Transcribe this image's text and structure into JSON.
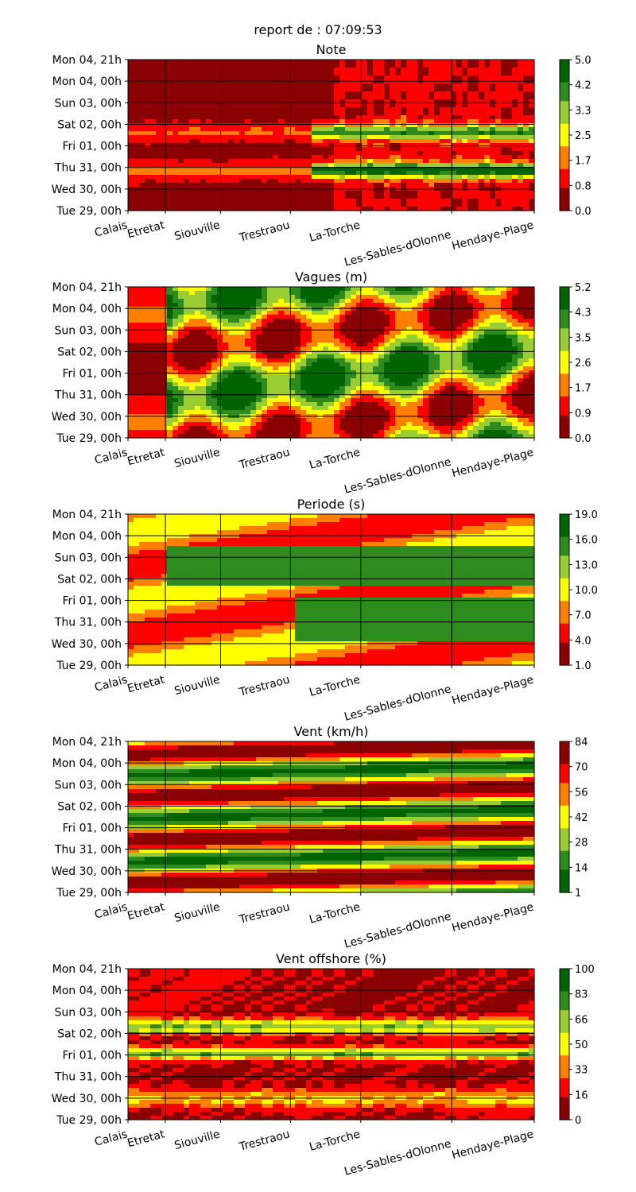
{
  "report_title": "report de : 07:09:53",
  "colors": {
    "dark_red": "#8b0000",
    "red": "#ff0000",
    "yellow": "#ffff00",
    "green": "#2e8b1e",
    "dark_green": "#006400"
  },
  "chart_data": [
    {
      "type": "heatmap",
      "title": "Note",
      "y_ticks": [
        "Mon 04, 21h",
        "Mon 04, 00h",
        "Sun 03, 00h",
        "Sat 02, 00h",
        "Fri 01, 00h",
        "Thu 31, 00h",
        "Wed 30, 00h",
        "Tue 29, 00h"
      ],
      "x_ticks": [
        "Calais",
        "Etretat",
        "Siouville",
        "Trestraou",
        "La-Torche",
        "Les-Sables-dOlonne",
        "Hendaye-Plage"
      ],
      "colorbar": {
        "min": 0.0,
        "max": 5.0,
        "ticks": [
          "5.0",
          "4.2",
          "3.3",
          "2.5",
          "1.7",
          "0.8",
          "0.0"
        ]
      }
    },
    {
      "type": "heatmap",
      "title": "Vagues (m)",
      "y_ticks": [
        "Mon 04, 21h",
        "Mon 04, 00h",
        "Sun 03, 00h",
        "Sat 02, 00h",
        "Fri 01, 00h",
        "Thu 31, 00h",
        "Wed 30, 00h",
        "Tue 29, 00h"
      ],
      "x_ticks": [
        "Calais",
        "Etretat",
        "Siouville",
        "Trestraou",
        "La-Torche",
        "Les-Sables-dOlonne",
        "Hendaye-Plage"
      ],
      "colorbar": {
        "min": 0.0,
        "max": 5.2,
        "ticks": [
          "5.2",
          "4.3",
          "3.5",
          "2.6",
          "1.7",
          "0.9",
          "0.0"
        ]
      }
    },
    {
      "type": "heatmap",
      "title": "Periode (s)",
      "y_ticks": [
        "Mon 04, 21h",
        "Mon 04, 00h",
        "Sun 03, 00h",
        "Sat 02, 00h",
        "Fri 01, 00h",
        "Thu 31, 00h",
        "Wed 30, 00h",
        "Tue 29, 00h"
      ],
      "x_ticks": [
        "Calais",
        "Etretat",
        "Siouville",
        "Trestraou",
        "La-Torche",
        "Les-Sables-dOlonne",
        "Hendaye-Plage"
      ],
      "colorbar": {
        "min": 1.0,
        "max": 19.0,
        "ticks": [
          "19.0",
          "16.0",
          "13.0",
          "10.0",
          "7.0",
          "4.0",
          "1.0"
        ]
      }
    },
    {
      "type": "heatmap",
      "title": "Vent (km/h)",
      "y_ticks": [
        "Mon 04, 21h",
        "Mon 04, 00h",
        "Sun 03, 00h",
        "Sat 02, 00h",
        "Fri 01, 00h",
        "Thu 31, 00h",
        "Wed 30, 00h",
        "Tue 29, 00h"
      ],
      "x_ticks": [
        "Calais",
        "Etretat",
        "Siouville",
        "Trestraou",
        "La-Torche",
        "Les-Sables-dOlonne",
        "Hendaye-Plage"
      ],
      "colorbar": {
        "min": 1,
        "max": 84,
        "ticks": [
          "84",
          "70",
          "56",
          "42",
          "28",
          "14",
          "1"
        ],
        "reversed": true
      }
    },
    {
      "type": "heatmap",
      "title": "Vent offshore (%)",
      "y_ticks": [
        "Mon 04, 21h",
        "Mon 04, 00h",
        "Sun 03, 00h",
        "Sat 02, 00h",
        "Fri 01, 00h",
        "Thu 31, 00h",
        "Wed 30, 00h",
        "Tue 29, 00h"
      ],
      "x_ticks": [
        "Calais",
        "Etretat",
        "Siouville",
        "Trestraou",
        "La-Torche",
        "Les-Sables-dOlonne",
        "Hendaye-Plage"
      ],
      "colorbar": {
        "min": 0,
        "max": 100,
        "ticks": [
          "100",
          "83",
          "66",
          "50",
          "33",
          "16",
          "0"
        ]
      }
    }
  ]
}
